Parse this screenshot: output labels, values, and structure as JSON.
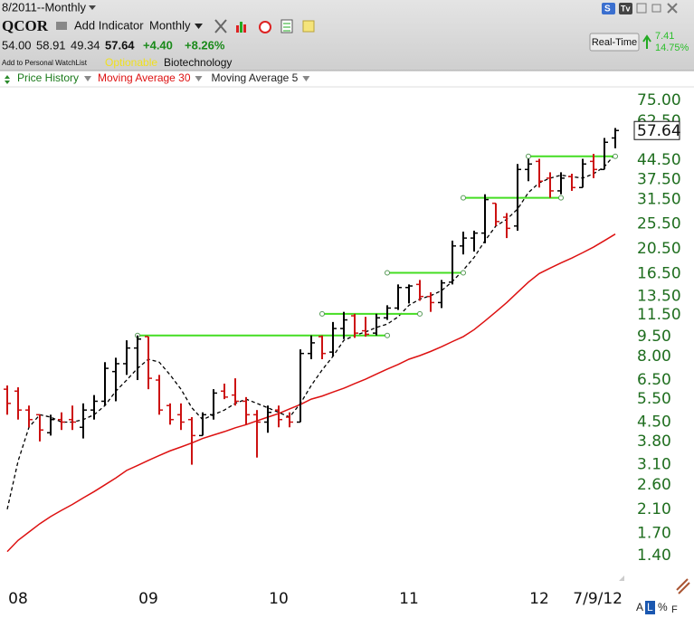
{
  "toolbar": {
    "period": "8/2011--Monthly",
    "add_indicator": "Add Indicator",
    "interval": "Monthly",
    "right_icons": [
      "S",
      "Tv"
    ]
  },
  "quote": {
    "symbol": "QCOR",
    "open": "54.00",
    "high": "58.91",
    "low": "49.34",
    "last": "57.64",
    "change": "+4.40",
    "change_pct": "+8.26%",
    "watchlist": "Add to Personal WatchList",
    "optionable": "Optionable",
    "industry": "Biotechnology",
    "realtime": "Real-Time",
    "rt_change": "7.41",
    "rt_change_pct": "14.75%"
  },
  "footer": {
    "buttons": [
      "A",
      "L",
      "%",
      "F"
    ]
  },
  "chart_data": {
    "type": "ohlc",
    "name": "Price History",
    "log_y": true,
    "up_color": "#000000",
    "down_color": "#cc1111",
    "categories": [
      null,
      "08",
      null,
      null,
      null,
      null,
      null,
      null,
      null,
      null,
      null,
      null,
      null,
      "09",
      null,
      null,
      null,
      null,
      null,
      null,
      null,
      null,
      null,
      null,
      null,
      "10",
      null,
      null,
      null,
      null,
      null,
      null,
      null,
      null,
      null,
      null,
      null,
      "11",
      null,
      null,
      null,
      null,
      null,
      null,
      null,
      null,
      null,
      null,
      null,
      "12",
      null,
      null,
      null,
      null,
      null,
      null,
      "7/9/12"
    ],
    "open": [
      6.0,
      5.9,
      5.0,
      4.8,
      4.1,
      4.6,
      4.6,
      4.3,
      5.0,
      5.4,
      7.0,
      7.5,
      8.6,
      9.5,
      6.5,
      5.2,
      4.8,
      4.6,
      4.0,
      4.8,
      5.9,
      5.7,
      5.4,
      4.8,
      4.5,
      5.0,
      4.7,
      4.5,
      8.2,
      9.5,
      8.3,
      10.2,
      11.4,
      10.0,
      9.8,
      11.2,
      12.2,
      14.6,
      15.0,
      13.5,
      12.8,
      15.3,
      21.0,
      22.5,
      23.5,
      30.5,
      27.0,
      25,
      41,
      44,
      38,
      34,
      38.5,
      35,
      44,
      41,
      54
    ],
    "high": [
      6.2,
      6.1,
      5.2,
      4.8,
      4.8,
      4.9,
      5.2,
      5.3,
      5.7,
      7.6,
      7.9,
      9.2,
      9.6,
      9.5,
      6.8,
      5.3,
      5.3,
      4.7,
      4.9,
      6.0,
      6.3,
      6.6,
      5.6,
      5.0,
      5.2,
      5.2,
      4.9,
      8.5,
      9.6,
      9.6,
      10.8,
      11.8,
      11.6,
      11.3,
      11.6,
      12.5,
      15.0,
      15.0,
      15.6,
      14.0,
      15.6,
      22.0,
      23.8,
      24.0,
      33.0,
      30.5,
      28.0,
      43,
      45,
      45,
      40,
      40,
      39.5,
      45,
      47,
      54,
      58.91
    ],
    "low": [
      4.8,
      4.6,
      4.3,
      3.8,
      4.0,
      4.2,
      4.2,
      3.9,
      4.6,
      5.2,
      5.4,
      6.8,
      6.5,
      6.0,
      4.8,
      4.4,
      4.2,
      3.1,
      4.0,
      4.6,
      5.5,
      5.2,
      4.4,
      3.3,
      4.1,
      4.3,
      4.3,
      4.5,
      7.8,
      7.8,
      8.0,
      9.3,
      9.4,
      9.5,
      9.6,
      11.0,
      12.0,
      12.7,
      13.0,
      11.8,
      12.2,
      15.0,
      19.5,
      20.0,
      21.5,
      25.0,
      22.5,
      24,
      37,
      35,
      32,
      33,
      34,
      35,
      38,
      41,
      49.34
    ],
    "close": [
      5.3,
      5.0,
      4.6,
      4.2,
      4.6,
      4.5,
      4.5,
      5.0,
      5.4,
      7.2,
      7.5,
      8.6,
      9.3,
      6.6,
      5.0,
      4.6,
      4.5,
      4.0,
      4.8,
      5.8,
      5.6,
      5.4,
      4.8,
      4.5,
      4.9,
      4.6,
      4.5,
      8.2,
      9.0,
      8.2,
      10.2,
      11.0,
      9.8,
      9.7,
      11.2,
      12.2,
      14.6,
      14.8,
      13.5,
      12.8,
      15.2,
      21.0,
      22.5,
      23.5,
      31.5,
      26.0,
      24.5,
      41,
      43,
      37,
      34,
      38,
      35,
      43,
      41,
      52,
      57.64
    ],
    "series": [
      {
        "name": "Moving Average 30",
        "color": "#dd1111",
        "dashed": false,
        "values": [
          1.45,
          1.6,
          1.72,
          1.85,
          1.97,
          2.08,
          2.19,
          2.32,
          2.45,
          2.6,
          2.76,
          2.95,
          3.08,
          3.22,
          3.36,
          3.5,
          3.62,
          3.75,
          3.9,
          4.02,
          4.14,
          4.28,
          4.4,
          4.55,
          4.7,
          4.85,
          5.05,
          5.25,
          5.5,
          5.65,
          5.85,
          6.05,
          6.3,
          6.55,
          6.85,
          7.15,
          7.45,
          7.8,
          8.05,
          8.35,
          8.7,
          9.1,
          9.5,
          10.1,
          10.9,
          11.8,
          12.8,
          14.0,
          15.3,
          16.5,
          17.3,
          18.1,
          18.9,
          19.8,
          20.8,
          22.0,
          23.3
        ]
      },
      {
        "name": "Moving Average 5",
        "color": "#000000",
        "dashed": true,
        "values": [
          2.1,
          3.2,
          4.3,
          4.8,
          4.7,
          4.5,
          4.5,
          4.6,
          4.8,
          5.2,
          5.9,
          6.5,
          7.2,
          7.8,
          7.6,
          6.8,
          6.0,
          5.1,
          4.6,
          4.8,
          5.0,
          5.3,
          5.5,
          5.3,
          5.1,
          4.9,
          4.7,
          5.3,
          6.2,
          7.1,
          8.0,
          9.2,
          9.6,
          9.9,
          10.3,
          10.6,
          11.3,
          12.5,
          13.2,
          13.6,
          14.2,
          15.4,
          17.0,
          19.0,
          22.0,
          25.0,
          26.5,
          29.0,
          33.5,
          36.5,
          38.0,
          39.0,
          38.5,
          38.0,
          39.5,
          42.0,
          47.0
        ]
      }
    ],
    "level_lines": {
      "color": "#44dd22",
      "lines": [
        {
          "value": 9.6,
          "start": 12,
          "end": 35
        },
        {
          "value": 11.6,
          "start": 29,
          "end": 38
        },
        {
          "value": 16.6,
          "start": 35,
          "end": 42
        },
        {
          "value": 32,
          "start": 42,
          "end": 51
        },
        {
          "value": 46,
          "start": 48,
          "end": 56
        }
      ]
    },
    "ylim": [
      1.14,
      85.1
    ],
    "yticks": [
      {
        "value": 75,
        "label": "75.00"
      },
      {
        "value": 62.5,
        "label": "62.50"
      },
      {
        "value": 44.5,
        "label": "44.50"
      },
      {
        "value": 37.5,
        "label": "37.50"
      },
      {
        "value": 31.5,
        "label": "31.50"
      },
      {
        "value": 25.5,
        "label": "25.50"
      },
      {
        "value": 20.5,
        "label": "20.50"
      },
      {
        "value": 16.5,
        "label": "16.50"
      },
      {
        "value": 13.5,
        "label": "13.50"
      },
      {
        "value": 11.5,
        "label": "11.50"
      },
      {
        "value": 9.5,
        "label": "9.50"
      },
      {
        "value": 8,
        "label": "8.00"
      },
      {
        "value": 6.5,
        "label": "6.50"
      },
      {
        "value": 5.5,
        "label": "5.50"
      },
      {
        "value": 4.5,
        "label": "4.50"
      },
      {
        "value": 3.8,
        "label": "3.80"
      },
      {
        "value": 3.1,
        "label": "3.10"
      },
      {
        "value": 2.6,
        "label": "2.60"
      },
      {
        "value": 2.1,
        "label": "2.10"
      },
      {
        "value": 1.7,
        "label": "1.70"
      },
      {
        "value": 1.4,
        "label": "1.40"
      }
    ]
  }
}
